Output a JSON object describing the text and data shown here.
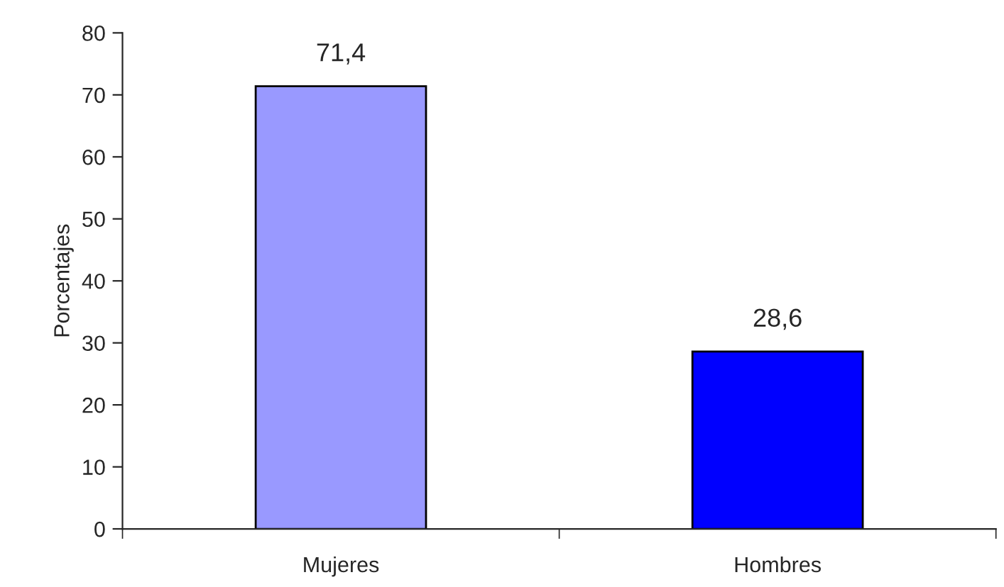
{
  "chart_data": {
    "type": "bar",
    "ylabel": "Porcentajes",
    "categories": [
      "Mujeres",
      "Hombres"
    ],
    "values": [
      71.4,
      28.6
    ],
    "colors": [
      "#9999ff",
      "#0000ff"
    ],
    "value_labels": [
      "71,4",
      "28,6"
    ],
    "ylim": [
      0,
      80
    ],
    "yticks": [
      0,
      10,
      20,
      30,
      40,
      50,
      60,
      70,
      80
    ],
    "grid": false
  }
}
